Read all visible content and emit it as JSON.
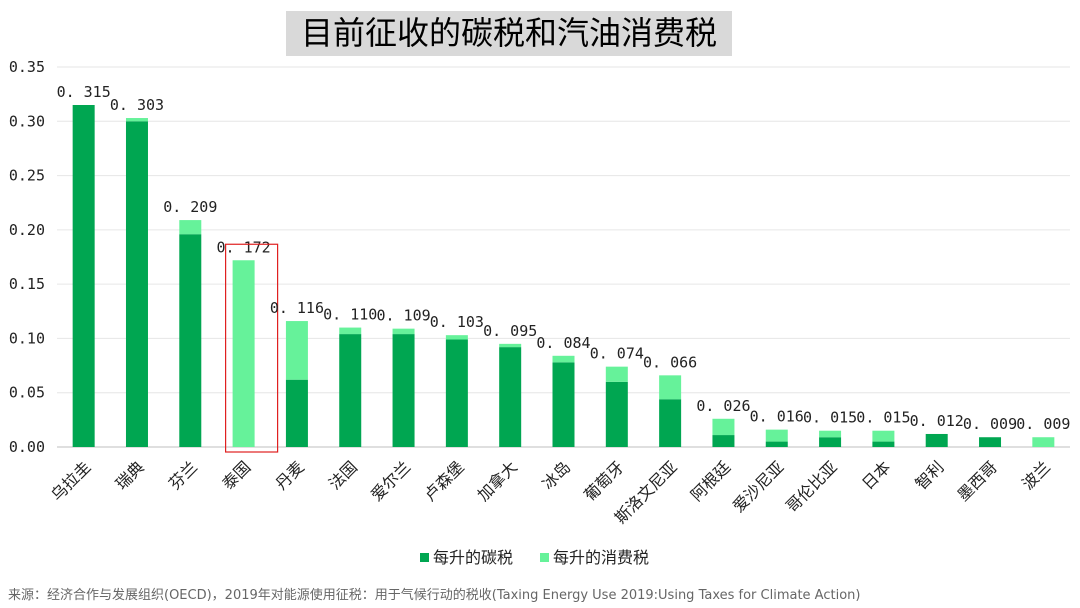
{
  "chart_data": {
    "type": "bar",
    "stacked": true,
    "title": "目前征收的碳税和汽油消费税",
    "categories": [
      "乌拉圭",
      "瑞典",
      "芬兰",
      "泰国",
      "丹麦",
      "法国",
      "爱尔兰",
      "卢森堡",
      "加拿大",
      "冰岛",
      "葡萄牙",
      "斯洛文尼亚",
      "阿根廷",
      "爱沙尼亚",
      "哥伦比亚",
      "日本",
      "智利",
      "墨西哥",
      "波兰"
    ],
    "totals": [
      0.315,
      0.303,
      0.209,
      0.172,
      0.116,
      0.11,
      0.109,
      0.103,
      0.095,
      0.084,
      0.074,
      0.066,
      0.026,
      0.016,
      0.015,
      0.015,
      0.012,
      0.009,
      0.009
    ],
    "total_labels": [
      "0.315",
      "0.303",
      "0.209",
      "0.172",
      "0.116",
      "0.110",
      "0.109",
      "0.103",
      "0.095",
      "0.084",
      "0.074",
      "0.066",
      "0.026",
      "0.016",
      "0.015",
      "0.015",
      "0.012",
      "0.009",
      "0.009"
    ],
    "series": [
      {
        "name": "每升的碳税",
        "color": "#00a651",
        "values": [
          0.315,
          0.3,
          0.196,
          0,
          0.062,
          0.104,
          0.104,
          0.099,
          0.092,
          0.078,
          0.06,
          0.044,
          0.011,
          0.005,
          0.009,
          0.005,
          0.012,
          0.009,
          0
        ]
      },
      {
        "name": "每升的消费税",
        "color": "#66f29a",
        "values": [
          0,
          0.003,
          0.013,
          0.172,
          0.054,
          0.006,
          0.005,
          0.004,
          0.003,
          0.006,
          0.014,
          0.022,
          0.015,
          0.011,
          0.006,
          0.01,
          0,
          0,
          0.009
        ]
      }
    ],
    "ylim": [
      0,
      0.35
    ],
    "yticks": [
      "0.00",
      "0.05",
      "0.10",
      "0.15",
      "0.20",
      "0.25",
      "0.30",
      "0.35"
    ],
    "grid": true,
    "legend": "bottom",
    "highlight_category": "泰国",
    "highlight_color": "#e02020"
  },
  "source": "来源：经济合作与发展组织(OECD)，2019年对能源使用征税：用于气候行动的税收(Taxing Energy Use 2019:Using Taxes for Climate Action)"
}
